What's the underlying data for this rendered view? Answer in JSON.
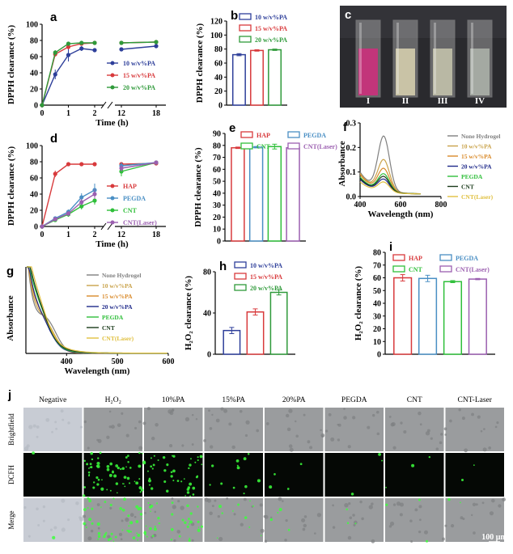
{
  "colors": {
    "c10": "#2e3f9a",
    "c15": "#d83a3c",
    "c20": "#2f9a3a",
    "hap": "#d83a3c",
    "pegda": "#4a8fc4",
    "cnt": "#2fbf3a",
    "laser": "#9b5fb0",
    "none": "#808080",
    "p10": "#c9a24a",
    "p15": "#d98a2a",
    "p20": "#1f2a8a",
    "peg": "#2fbf3a",
    "cntk": "#1a3a1a",
    "lasr": "#e0c040"
  },
  "panels": {
    "a": {
      "letter": "a",
      "ylabel": "DPPH clearance (%)",
      "xlabel": "Time (h)",
      "yticks": [
        "0",
        "20",
        "40",
        "60",
        "80",
        "100"
      ],
      "xticks": [
        "0",
        "1",
        "2",
        "12",
        "18"
      ]
    },
    "b": {
      "letter": "b",
      "ylabel": "DPPH clearance (%)",
      "yticks": [
        "0",
        "20",
        "40",
        "60",
        "80",
        "100",
        "120"
      ]
    },
    "c": {
      "letter": "c",
      "vials": [
        "I",
        "II",
        "III",
        "IV"
      ]
    },
    "d": {
      "letter": "d",
      "ylabel": "DPPH clearance (%)",
      "xlabel": "Time (h)",
      "yticks": [
        "0",
        "20",
        "40",
        "60",
        "80",
        "100"
      ],
      "xticks": [
        "0",
        "1",
        "2",
        "12",
        "18"
      ]
    },
    "e": {
      "letter": "e",
      "ylabel": "DPPH clearance (%)",
      "yticks": [
        "0",
        "10",
        "20",
        "30",
        "40",
        "50",
        "60",
        "70",
        "80",
        "90"
      ]
    },
    "f": {
      "letter": "f",
      "ylabel": "Absorbance",
      "xlabel": "Wavelength (nm)",
      "yticks": [
        "0.0",
        "0.1",
        "0.2",
        "0.3"
      ],
      "xticks": [
        "400",
        "600",
        "800"
      ]
    },
    "g": {
      "letter": "g",
      "ylabel": "Absorbance",
      "xlabel": "Wavelength (nm)",
      "xticks": [
        "400",
        "500",
        "600"
      ]
    },
    "h": {
      "letter": "h",
      "ylabel": "H₂O₂ clearance (%)",
      "yticks": [
        "0",
        "40",
        "80"
      ]
    },
    "i": {
      "letter": "i",
      "ylabel": "H₂O₂ clearance (%)",
      "yticks": [
        "0",
        "10",
        "20",
        "30",
        "40",
        "50",
        "60",
        "70",
        "80"
      ]
    },
    "j": {
      "letter": "j",
      "cols": [
        "Negative",
        "H₂O₂",
        "10%PA",
        "15%PA",
        "20%PA",
        "PEGDA",
        "CNT",
        "CNT-Laser"
      ],
      "rows": [
        "Brightfield",
        "DCFH",
        "Merge"
      ],
      "scalebar": "100 μm"
    }
  },
  "chart_data": [
    {
      "panel": "a",
      "type": "line",
      "x": [
        0,
        0.5,
        1,
        1.5,
        2,
        12,
        18
      ],
      "series": [
        {
          "name": "10 w/v%PA",
          "values": [
            0,
            38,
            62,
            70,
            68,
            69,
            73
          ],
          "err": [
            0,
            6,
            8,
            3,
            2,
            1,
            1
          ]
        },
        {
          "name": "15 w/v%PA",
          "values": [
            0,
            63,
            72,
            76,
            77,
            77,
            78
          ],
          "err": [
            0,
            3,
            3,
            2,
            2,
            1,
            1
          ]
        },
        {
          "name": "20 w/v%PA",
          "values": [
            0,
            65,
            76,
            77,
            77,
            77,
            78
          ],
          "err": [
            0,
            3,
            2,
            1,
            1,
            1,
            1
          ]
        }
      ],
      "ylabel": "DPPH clearance (%)",
      "xlabel": "Time (h)",
      "ylim": [
        0,
        100
      ]
    },
    {
      "panel": "b",
      "type": "bar",
      "categories": [
        "10 w/v%PA",
        "15 w/v%PA",
        "20 w/v%PA"
      ],
      "values": [
        72,
        78,
        79
      ],
      "err": [
        1.5,
        1,
        1
      ],
      "ylabel": "DPPH clearance (%)",
      "ylim": [
        0,
        120
      ]
    },
    {
      "panel": "d",
      "type": "line",
      "x": [
        0,
        0.5,
        1,
        1.5,
        2,
        12,
        18
      ],
      "series": [
        {
          "name": "HAP",
          "values": [
            0,
            65,
            77,
            77,
            77,
            77,
            78
          ],
          "err": [
            0,
            4,
            2,
            1,
            1,
            1,
            1
          ]
        },
        {
          "name": "PEGDA",
          "values": [
            0,
            10,
            18,
            36,
            45,
            75,
            79
          ],
          "err": [
            0,
            2,
            3,
            5,
            8,
            4,
            2
          ]
        },
        {
          "name": "CNT",
          "values": [
            0,
            8,
            15,
            25,
            32,
            68,
            79
          ],
          "err": [
            0,
            2,
            3,
            4,
            5,
            6,
            2
          ]
        },
        {
          "name": "CNT(Laser)",
          "values": [
            0,
            9,
            16,
            30,
            40,
            72,
            79
          ],
          "err": [
            0,
            2,
            3,
            4,
            6,
            4,
            2
          ]
        }
      ],
      "ylabel": "DPPH clearance (%)",
      "xlabel": "Time (h)",
      "ylim": [
        0,
        100
      ]
    },
    {
      "panel": "e",
      "type": "bar",
      "categories": [
        "HAP",
        "PEGDA",
        "CNT",
        "CNT(Laser)"
      ],
      "values": [
        78,
        78.5,
        79,
        78
      ],
      "err": [
        0.6,
        0.6,
        2,
        0.8
      ],
      "ylabel": "DPPH clearance (%)",
      "ylim": [
        0,
        90
      ]
    },
    {
      "panel": "f",
      "type": "line",
      "xlim": [
        400,
        800
      ],
      "ylim": [
        0,
        0.3
      ],
      "ylabel": "Absorbance",
      "xlabel": "Wavelength (nm)",
      "series": [
        {
          "name": "None Hydrogel",
          "peak": 0.24,
          "base": 0.09
        },
        {
          "name": "10 w/v%PA",
          "peak": 0.145,
          "base": 0.085
        },
        {
          "name": "15 w/v%PA",
          "peak": 0.11,
          "base": 0.08
        },
        {
          "name": "20 w/v%PA",
          "peak": 0.07,
          "base": 0.06
        },
        {
          "name": "PEGDA",
          "peak": 0.09,
          "base": 0.07
        },
        {
          "name": "CNT",
          "peak": 0.08,
          "base": 0.065
        },
        {
          "name": "CNT(Laser)",
          "peak": 0.06,
          "base": 0.05
        }
      ]
    },
    {
      "panel": "g",
      "type": "line",
      "xlim": [
        320,
        600
      ],
      "ylabel": "Absorbance",
      "xlabel": "Wavelength (nm)",
      "series": [
        {
          "name": "None Hydrogel",
          "shoulder": 0.3
        },
        {
          "name": "10 w/v%PA",
          "shoulder": 0.25
        },
        {
          "name": "15 w/v%PA",
          "shoulder": 0.22
        },
        {
          "name": "20 w/v%PA",
          "shoulder": 0.18
        },
        {
          "name": "PEGDA",
          "shoulder": 0.2
        },
        {
          "name": "CNT",
          "shoulder": 0.19
        },
        {
          "name": "CNT(Laser)",
          "shoulder": 0.21
        }
      ]
    },
    {
      "panel": "h",
      "type": "bar",
      "categories": [
        "10 w/v%PA",
        "15 w/v%PA",
        "20 w/v%PA"
      ],
      "values": [
        23,
        41,
        60
      ],
      "err": [
        3,
        3,
        2.5
      ],
      "ylabel": "H₂O₂ clearance (%)",
      "ylim": [
        0,
        80
      ]
    },
    {
      "panel": "i",
      "type": "bar",
      "categories": [
        "HAP",
        "PEGDA",
        "CNT",
        "CNT(Laser)"
      ],
      "values": [
        60,
        59.5,
        57,
        59
      ],
      "err": [
        2.5,
        2.5,
        0.8,
        0.5
      ],
      "ylabel": "H₂O₂ clearance (%)",
      "ylim": [
        0,
        80
      ]
    }
  ]
}
